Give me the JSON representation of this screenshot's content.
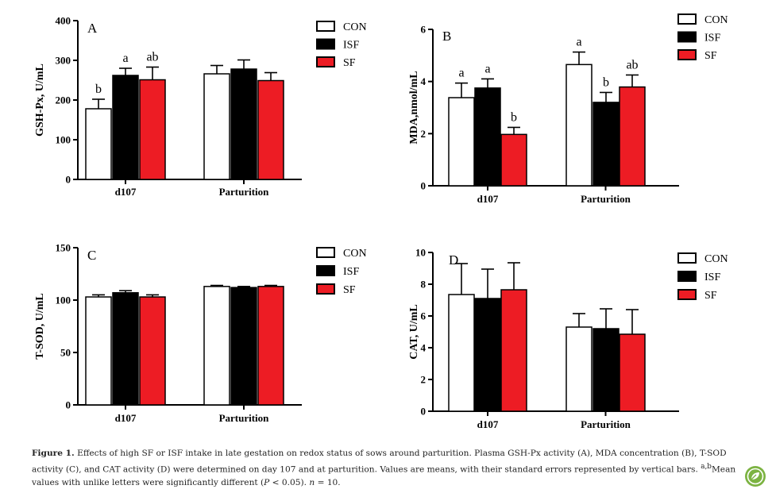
{
  "chart_data": [
    {
      "type": "bar",
      "panel_label": "A",
      "ylabel": "GSH-Px, U/mL",
      "categories": [
        "d107",
        "Parturition"
      ],
      "ylim": [
        0,
        400
      ],
      "yticks": [
        "0",
        "100",
        "200",
        "300",
        "400"
      ],
      "legend": "top-right",
      "series": [
        {
          "name": "CON",
          "values": [
            178,
            266
          ],
          "errors": [
            24,
            21
          ],
          "letters": [
            "b",
            ""
          ]
        },
        {
          "name": "ISF",
          "values": [
            262,
            278
          ],
          "errors": [
            18,
            23
          ],
          "letters": [
            "a",
            ""
          ]
        },
        {
          "name": "SF",
          "values": [
            251,
            249
          ],
          "errors": [
            32,
            20
          ],
          "letters": [
            "ab",
            ""
          ]
        }
      ]
    },
    {
      "type": "bar",
      "panel_label": "B",
      "ylabel": "MDA,nmol/mL",
      "categories": [
        "d107",
        "Parturition"
      ],
      "ylim": [
        0,
        6
      ],
      "yticks": [
        "0",
        "2",
        "4",
        "6"
      ],
      "legend": "top-right",
      "series": [
        {
          "name": "CON",
          "values": [
            3.38,
            4.65
          ],
          "errors": [
            0.56,
            0.48
          ],
          "letters": [
            "a",
            "a"
          ]
        },
        {
          "name": "ISF",
          "values": [
            3.75,
            3.2
          ],
          "errors": [
            0.35,
            0.38
          ],
          "letters": [
            "a",
            "b"
          ]
        },
        {
          "name": "SF",
          "values": [
            1.97,
            3.79
          ],
          "errors": [
            0.27,
            0.46
          ],
          "letters": [
            "b",
            "ab"
          ]
        }
      ]
    },
    {
      "type": "bar",
      "panel_label": "C",
      "ylabel": "T-SOD,  U/mL",
      "categories": [
        "d107",
        "Parturition"
      ],
      "ylim": [
        0,
        150
      ],
      "yticks": [
        "0",
        "50",
        "100",
        "150"
      ],
      "legend": "top-right",
      "series": [
        {
          "name": "CON",
          "values": [
            103,
            113
          ],
          "errors": [
            2,
            1
          ],
          "letters": [
            "",
            ""
          ]
        },
        {
          "name": "ISF",
          "values": [
            107,
            112
          ],
          "errors": [
            2,
            1
          ],
          "letters": [
            "",
            ""
          ]
        },
        {
          "name": "SF",
          "values": [
            103,
            113
          ],
          "errors": [
            2,
            1
          ],
          "letters": [
            "",
            ""
          ]
        }
      ]
    },
    {
      "type": "bar",
      "panel_label": "D",
      "ylabel": "CAT,  U/mL",
      "categories": [
        "d107",
        "Parturition"
      ],
      "ylim": [
        0,
        10
      ],
      "yticks": [
        "0",
        "2",
        "4",
        "6",
        "8",
        "10"
      ],
      "legend": "top-right",
      "series": [
        {
          "name": "CON",
          "values": [
            7.35,
            5.3
          ],
          "errors": [
            1.95,
            0.85
          ],
          "letters": [
            "",
            ""
          ]
        },
        {
          "name": "ISF",
          "values": [
            7.1,
            5.2
          ],
          "errors": [
            1.85,
            1.25
          ],
          "letters": [
            "",
            ""
          ]
        },
        {
          "name": "SF",
          "values": [
            7.65,
            4.85
          ],
          "errors": [
            1.7,
            1.55
          ],
          "letters": [
            "",
            ""
          ]
        }
      ]
    }
  ],
  "colors": {
    "CON": "#ffffff",
    "ISF": "#000000",
    "SF": "#ed1c24"
  },
  "caption": {
    "label": "Figure 1.",
    "text1": " Effects of high SF or ISF intake in late gestation on redox status of sows around parturition. Plasma GSH-Px activity (A), MDA concentration (B), T-SOD activity (C), and CAT activity (D) were determined on day 107 and at parturition. Values are means, with their standard errors represented by vertical bars. ",
    "superscript": "a,b",
    "text2": "Mean values with unlike letters were significantly different (",
    "p_symbol": "P",
    "text3": " < 0.05). ",
    "n_symbol": "n",
    "text4": " = 10."
  },
  "badge_icon": "leaf-icon"
}
